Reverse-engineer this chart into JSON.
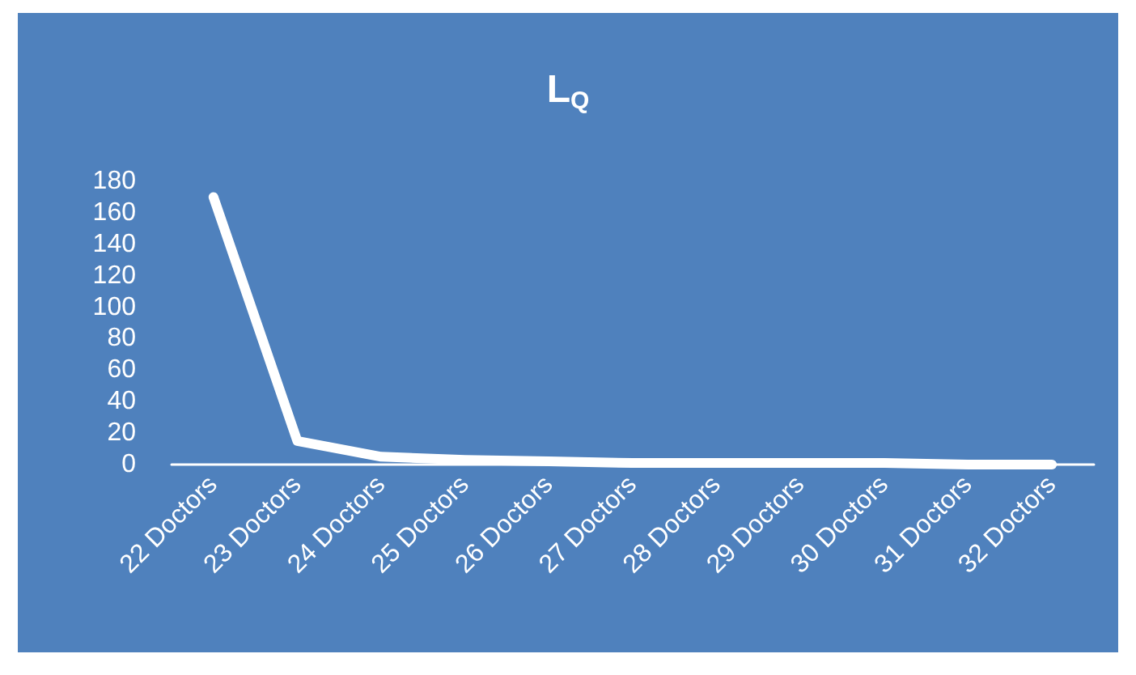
{
  "chart_data": {
    "type": "line",
    "title": "L$_{Q}$",
    "categories": [
      "22 Doctors",
      "23 Doctors",
      "24 Doctors",
      "25 Doctors",
      "26 Doctors",
      "27 Doctors",
      "28 Doctors",
      "29 Doctors",
      "30 Doctors",
      "31 Doctors",
      "32 Doctors"
    ],
    "series": [
      {
        "color": "#ffffff",
        "values": [
          170,
          15,
          5,
          3,
          2,
          1,
          1,
          1,
          1,
          0,
          0
        ]
      }
    ],
    "ylim": [
      0,
      180
    ],
    "yticks": [
      0,
      20,
      40,
      60,
      80,
      100,
      120,
      140,
      160,
      180
    ],
    "grid": false,
    "marker": "none",
    "line_style": "solid"
  }
}
